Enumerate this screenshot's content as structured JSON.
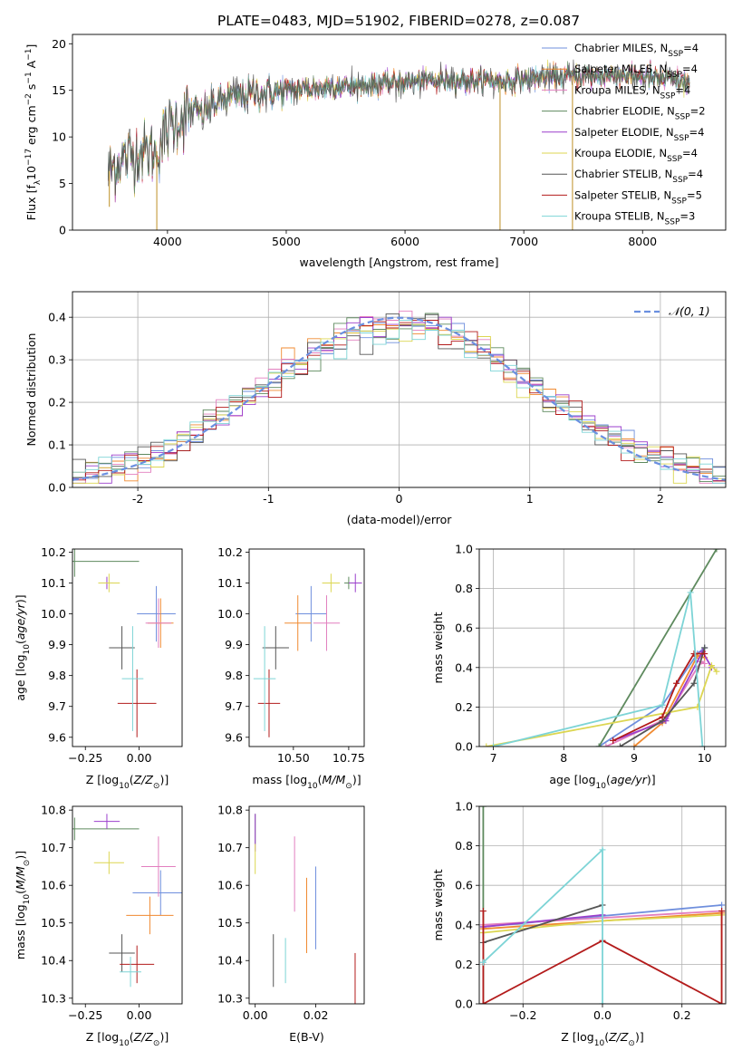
{
  "figure": {
    "title": "PLATE=0483, MJD=51902, FIBERID=0278, z=0.087"
  },
  "colors": {
    "models": [
      "#6f8fdd",
      "#f08a31",
      "#e27fbf",
      "#5e8a5e",
      "#9b3fcc",
      "#dcd651",
      "#555555",
      "#b31b1b",
      "#7dd4d6"
    ],
    "gauss": "#6a8fe0"
  },
  "chart_data": [
    {
      "type": "line",
      "panel": "spectrum",
      "xlabel": "wavelength [Angstrom, rest frame]",
      "ylabel": "Flux [f",
      "ylabel_parts": [
        "Flux [f",
        "λ",
        "10",
        "−17",
        " erg cm",
        "−2",
        " s",
        "−1",
        " A",
        "−1",
        "]"
      ],
      "xlim": [
        3200,
        8700
      ],
      "ylim": [
        0,
        21
      ],
      "xticks": [
        4000,
        5000,
        6000,
        7000,
        8000
      ],
      "yticks": [
        0,
        5,
        10,
        15,
        20
      ],
      "grid": false,
      "legend_position": "top-right",
      "legend": [
        {
          "name": "Chabrier MILES, N",
          "sub": "SSP",
          "n": "=4"
        },
        {
          "name": "Salpeter MILES, N",
          "sub": "SSP",
          "n": "=4"
        },
        {
          "name": "Kroupa MILES, N",
          "sub": "SSP",
          "n": "=4"
        },
        {
          "name": "Chabrier ELODIE, N",
          "sub": "SSP",
          "n": "=2"
        },
        {
          "name": "Salpeter ELODIE, N",
          "sub": "SSP",
          "n": "=4"
        },
        {
          "name": "Kroupa ELODIE, N",
          "sub": "SSP",
          "n": "=4"
        },
        {
          "name": "Chabrier STELIB, N",
          "sub": "SSP",
          "n": "=4"
        },
        {
          "name": "Salpeter STELIB, N",
          "sub": "SSP",
          "n": "=5"
        },
        {
          "name": "Kroupa STELIB, N",
          "sub": "SSP",
          "n": "=3"
        }
      ],
      "continuum": {
        "x": [
          3500,
          3600,
          3700,
          3800,
          3900,
          4000,
          4100,
          4200,
          4300,
          4400,
          4500,
          4700,
          5000,
          5300,
          5600,
          6000,
          6400,
          6800,
          7000,
          7200,
          7400,
          7600,
          7800,
          8000,
          8200,
          8400
        ],
        "y": [
          6.2,
          7.5,
          8.0,
          8.6,
          8.2,
          11.0,
          12.0,
          12.8,
          12.5,
          13.6,
          14.2,
          14.6,
          15.0,
          15.3,
          15.5,
          15.9,
          16.1,
          16.0,
          16.2,
          16.4,
          16.5,
          16.6,
          16.6,
          16.5,
          16.2,
          15.8
        ]
      },
      "spikes": [
        {
          "x": 3510,
          "low": 2.5
        },
        {
          "x": 3910,
          "low": 0.0
        },
        {
          "x": 6800,
          "low": 0.0
        },
        {
          "x": 7410,
          "low": 0.0
        }
      ]
    },
    {
      "type": "line",
      "panel": "residuals",
      "xlabel": "(data-model)/error",
      "ylabel": "Normed distribution",
      "xlim": [
        -2.5,
        2.5
      ],
      "ylim": [
        0,
        0.46
      ],
      "xticks": [
        -2,
        -1,
        0,
        1,
        2
      ],
      "yticks": [
        0.0,
        0.1,
        0.2,
        0.3,
        0.4
      ],
      "grid": true,
      "legend_position": "top-right",
      "legend": [
        {
          "name": "𝒩(0, 1)"
        }
      ],
      "bin_width": 0.1,
      "gaussian": {
        "mean": 0,
        "sigma": 1
      }
    },
    {
      "type": "scatter",
      "panel": "age-vs-z",
      "xlabel": "Z [log",
      "xlabel_parts": [
        "Z [log",
        "10",
        "(Z/Z",
        "⊙",
        ")]"
      ],
      "ylabel_parts": [
        "age  [log",
        "10",
        "(age/yr)]"
      ],
      "xlim": [
        -0.31,
        0.2
      ],
      "ylim": [
        9.57,
        10.21
      ],
      "xticks": [
        -0.25,
        0.0
      ],
      "xtick_labels": [
        "−0.25",
        "0.00"
      ],
      "yticks": [
        9.6,
        9.7,
        9.8,
        9.9,
        10.0,
        10.1,
        10.2
      ],
      "grid": false,
      "points": [
        {
          "x": 0.08,
          "y": 10.0,
          "xerr": 0.09,
          "yerr": 0.09
        },
        {
          "x": 0.1,
          "y": 9.97,
          "xerr": 0.06,
          "yerr": 0.08
        },
        {
          "x": 0.09,
          "y": 9.97,
          "xerr": 0.06,
          "yerr": 0.08
        },
        {
          "x": -0.3,
          "y": 10.17,
          "xerr": 0.3,
          "yerr": 0.05
        },
        {
          "x": -0.15,
          "y": 10.1,
          "xerr": 0.03,
          "yerr": 0.02
        },
        {
          "x": -0.14,
          "y": 10.1,
          "xerr": 0.05,
          "yerr": 0.03
        },
        {
          "x": -0.08,
          "y": 9.89,
          "xerr": 0.06,
          "yerr": 0.07
        },
        {
          "x": -0.01,
          "y": 9.71,
          "xerr": 0.09,
          "yerr": 0.11
        },
        {
          "x": -0.03,
          "y": 9.79,
          "xerr": 0.05,
          "yerr": 0.17
        }
      ]
    },
    {
      "type": "scatter",
      "panel": "age-vs-mass",
      "xlabel_parts": [
        "mass [log",
        "10",
        "(M/M",
        "⊙",
        ")]"
      ],
      "xlim": [
        10.3,
        10.82
      ],
      "ylim": [
        9.57,
        10.21
      ],
      "xticks": [
        10.5,
        10.75
      ],
      "xtick_labels": [
        "10.50",
        "10.75"
      ],
      "yticks": [
        9.6,
        9.7,
        9.8,
        9.9,
        10.0,
        10.1,
        10.2
      ],
      "grid": false,
      "points": [
        {
          "x": 10.58,
          "y": 10.0,
          "xerr": 0.07,
          "yerr": 0.09
        },
        {
          "x": 10.52,
          "y": 9.97,
          "xerr": 0.06,
          "yerr": 0.09
        },
        {
          "x": 10.65,
          "y": 9.97,
          "xerr": 0.06,
          "yerr": 0.09
        },
        {
          "x": 10.75,
          "y": 10.1,
          "xerr": 0.02,
          "yerr": 0.02
        },
        {
          "x": 10.78,
          "y": 10.1,
          "xerr": 0.03,
          "yerr": 0.03
        },
        {
          "x": 10.67,
          "y": 10.1,
          "xerr": 0.04,
          "yerr": 0.03
        },
        {
          "x": 10.42,
          "y": 9.89,
          "xerr": 0.06,
          "yerr": 0.07
        },
        {
          "x": 10.39,
          "y": 9.71,
          "xerr": 0.05,
          "yerr": 0.11
        },
        {
          "x": 10.37,
          "y": 9.79,
          "xerr": 0.05,
          "yerr": 0.17
        }
      ]
    },
    {
      "type": "line",
      "panel": "massweight-vs-age",
      "xlabel_parts": [
        "age  [log",
        "10",
        "(age/yr)]"
      ],
      "ylabel": "mass weight",
      "xlim": [
        6.8,
        10.3
      ],
      "ylim": [
        0,
        1
      ],
      "xticks": [
        7,
        8,
        9,
        10
      ],
      "yticks": [
        0.0,
        0.2,
        0.4,
        0.6,
        0.8,
        1.0
      ],
      "grid": true,
      "series": [
        {
          "x": [
            8.5,
            9.4,
            9.9,
            10.0
          ],
          "y": [
            0.0,
            0.21,
            0.47,
            0.5
          ]
        },
        {
          "x": [
            9.0,
            9.4,
            9.9,
            10.0
          ],
          "y": [
            0.0,
            0.12,
            0.46,
            0.45
          ]
        },
        {
          "x": [
            8.6,
            9.45,
            9.95,
            10.0
          ],
          "y": [
            0.0,
            0.14,
            0.43,
            0.42
          ]
        },
        {
          "x": [
            8.5,
            10.17
          ],
          "y": [
            0.0,
            1.0
          ]
        },
        {
          "x": [
            8.7,
            9.45,
            9.97,
            10.1
          ],
          "y": [
            0.03,
            0.13,
            0.48,
            0.4
          ]
        },
        {
          "x": [
            6.9,
            9.9,
            10.1,
            10.17
          ],
          "y": [
            0.0,
            0.2,
            0.41,
            0.38
          ]
        },
        {
          "x": [
            8.8,
            9.4,
            9.85,
            10.0
          ],
          "y": [
            0.0,
            0.13,
            0.32,
            0.5
          ]
        },
        {
          "x": [
            8.7,
            9.4,
            9.6,
            9.85,
            10.0
          ],
          "y": [
            0.03,
            0.15,
            0.32,
            0.47,
            0.47
          ]
        },
        {
          "x": [
            7.0,
            9.4,
            9.8,
            9.97
          ],
          "y": [
            0.0,
            0.21,
            0.78,
            0.0
          ]
        }
      ]
    },
    {
      "type": "scatter",
      "panel": "mass-vs-z",
      "xlabel_parts": [
        "Z [log",
        "10",
        "(Z/Z",
        "⊙",
        ")]"
      ],
      "ylabel_parts": [
        "mass [log",
        "10",
        "(M/M",
        "⊙",
        ")]"
      ],
      "xlim": [
        -0.31,
        0.2
      ],
      "ylim": [
        10.285,
        10.81
      ],
      "xticks": [
        -0.25,
        0.0
      ],
      "xtick_labels": [
        "−0.25",
        "0.00"
      ],
      "yticks": [
        10.3,
        10.4,
        10.5,
        10.6,
        10.7,
        10.8
      ],
      "grid": false,
      "points": [
        {
          "x": 0.1,
          "y": 10.58,
          "xerr": 0.13,
          "yerr": 0.06
        },
        {
          "x": 0.05,
          "y": 10.52,
          "xerr": 0.11,
          "yerr": 0.05
        },
        {
          "x": 0.09,
          "y": 10.65,
          "xerr": 0.08,
          "yerr": 0.08
        },
        {
          "x": -0.3,
          "y": 10.75,
          "xerr": 0.3,
          "yerr": 0.03
        },
        {
          "x": -0.15,
          "y": 10.77,
          "xerr": 0.06,
          "yerr": 0.02
        },
        {
          "x": -0.14,
          "y": 10.66,
          "xerr": 0.07,
          "yerr": 0.03
        },
        {
          "x": -0.08,
          "y": 10.42,
          "xerr": 0.06,
          "yerr": 0.05
        },
        {
          "x": -0.01,
          "y": 10.39,
          "xerr": 0.08,
          "yerr": 0.05
        },
        {
          "x": -0.04,
          "y": 10.37,
          "xerr": 0.05,
          "yerr": 0.04
        }
      ]
    },
    {
      "type": "scatter",
      "panel": "mass-vs-ebv",
      "xlabel": "E(B-V)",
      "xlim": [
        -0.002,
        0.036
      ],
      "ylim": [
        10.285,
        10.81
      ],
      "xticks": [
        0.0,
        0.02
      ],
      "xtick_labels": [
        "0.00",
        "0.02"
      ],
      "yticks": [
        10.3,
        10.4,
        10.5,
        10.6,
        10.7,
        10.8
      ],
      "grid": false,
      "points": [
        {
          "x": 0.02,
          "y": 10.54,
          "xerr": 0,
          "yerr": 0.11
        },
        {
          "x": 0.017,
          "y": 10.52,
          "xerr": 0,
          "yerr": 0.1
        },
        {
          "x": 0.013,
          "y": 10.63,
          "xerr": 0,
          "yerr": 0.1
        },
        {
          "x": 0.0,
          "y": 10.75,
          "xerr": 0,
          "yerr": 0.04
        },
        {
          "x": 0.0,
          "y": 10.74,
          "xerr": 0,
          "yerr": 0.05
        },
        {
          "x": 0.0,
          "y": 10.67,
          "xerr": 0,
          "yerr": 0.04
        },
        {
          "x": 0.006,
          "y": 10.4,
          "xerr": 0,
          "yerr": 0.07
        },
        {
          "x": 0.033,
          "y": 10.3,
          "xerr": 0,
          "yerr": 0.12
        },
        {
          "x": 0.01,
          "y": 10.4,
          "xerr": 0,
          "yerr": 0.06
        }
      ]
    },
    {
      "type": "line",
      "panel": "massweight-vs-z",
      "xlabel_parts": [
        "Z [log",
        "10",
        "(Z/Z",
        "⊙",
        ")]"
      ],
      "ylabel": "mass weight",
      "xlim": [
        -0.31,
        0.31
      ],
      "ylim": [
        0,
        1
      ],
      "xticks": [
        -0.2,
        0.0,
        0.2
      ],
      "xtick_labels": [
        "−0.2",
        "0.0",
        "0.2"
      ],
      "yticks": [
        0.0,
        0.2,
        0.4,
        0.6,
        0.8,
        1.0
      ],
      "grid": true,
      "series": [
        {
          "x": [
            -0.3,
            0.3
          ],
          "y": [
            0.39,
            0.5
          ]
        },
        {
          "x": [
            -0.3,
            0.3,
            0.3
          ],
          "y": [
            0.38,
            0.46,
            0.0
          ]
        },
        {
          "x": [
            -0.3,
            0.3
          ],
          "y": [
            0.4,
            0.47
          ]
        },
        {
          "x": [
            -0.3,
            -0.3
          ],
          "y": [
            0.0,
            1.0
          ]
        },
        {
          "x": [
            -0.3,
            0.0
          ],
          "y": [
            0.39,
            0.45
          ]
        },
        {
          "x": [
            -0.3,
            0.0,
            0.3
          ],
          "y": [
            0.36,
            0.42,
            0.45
          ]
        },
        {
          "x": [
            -0.3,
            0.0
          ],
          "y": [
            0.31,
            0.5
          ]
        },
        {
          "x": [
            -0.3,
            -0.3,
            0.0,
            0.3,
            0.3
          ],
          "y": [
            0.47,
            0.0,
            0.32,
            0.0,
            0.47
          ]
        },
        {
          "x": [
            -0.3,
            0.0,
            0.0
          ],
          "y": [
            0.21,
            0.78,
            0.0
          ]
        }
      ]
    }
  ]
}
